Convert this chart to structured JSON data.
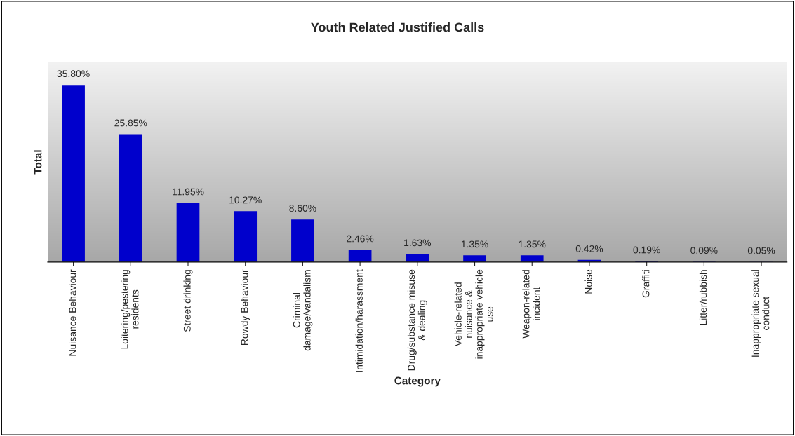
{
  "chart_data": {
    "type": "bar",
    "title": "Youth Related Justified Calls",
    "xlabel": "Category",
    "ylabel": "Total",
    "categories": [
      "Nuisance Behaviour",
      "Loitering/pestering\nresidents",
      "Street drinking",
      "Rowdy Behaviour",
      "Criminal\ndamage/vandalism",
      "Intimidation/harassment",
      "Drug/substance misuse\n& dealing",
      "Vehicle-related\nnuisance &\ninappropriate vehicle\nuse",
      "Weapon-related\nincident",
      "Noise",
      "Graffiti",
      "Litter/rubbish",
      "Inappropriate sexual\nconduct"
    ],
    "values": [
      35.8,
      25.85,
      11.95,
      10.27,
      8.6,
      2.46,
      1.63,
      1.35,
      1.35,
      0.42,
      0.19,
      0.09,
      0.05
    ],
    "value_labels": [
      "35.80%",
      "25.85%",
      "11.95%",
      "10.27%",
      "8.60%",
      "2.46%",
      "1.63%",
      "1.35%",
      "1.35%",
      "0.42%",
      "0.19%",
      "0.09%",
      "0.05%"
    ],
    "color": "#0000cc",
    "grid": false,
    "legend": false
  }
}
